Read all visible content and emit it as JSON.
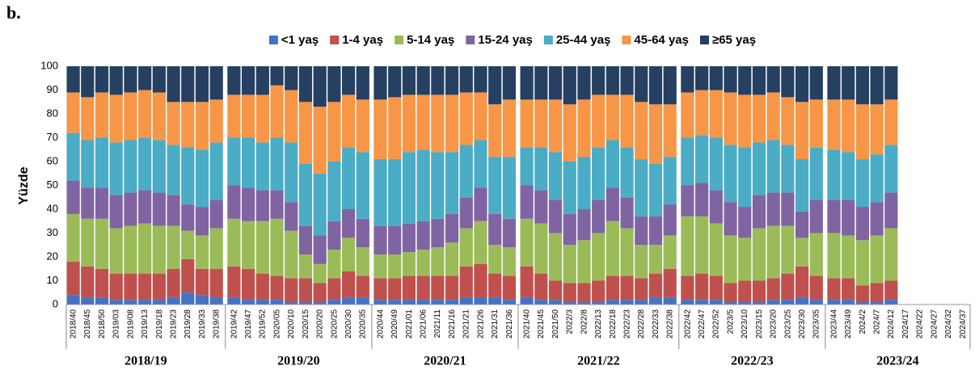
{
  "panel_label": "b.",
  "chart_data": {
    "type": "stacked_bar",
    "ylabel": "Yüzde",
    "ylim": [
      0,
      100
    ],
    "yticks": [
      0,
      10,
      20,
      30,
      40,
      50,
      60,
      70,
      80,
      90,
      100
    ],
    "categories": [
      "2018/40",
      "2018/45",
      "2018/50",
      "2019/03",
      "2019/08",
      "2019/13",
      "2019/18",
      "2019/23",
      "2019/28",
      "2019/33",
      "2019/38",
      "2019/42",
      "2019/47",
      "2019/52",
      "2020/05",
      "2020/10",
      "2020/15",
      "2020/20",
      "2020/25",
      "2020/30",
      "2020/35",
      "2020/44",
      "2020/49",
      "2021/01",
      "2021/06",
      "2021/11",
      "2021/16",
      "2021/21",
      "2021/26",
      "2021/31",
      "2021/36",
      "2021/40",
      "2021/45",
      "2021/50",
      "2022/3",
      "2022/8",
      "2022/13",
      "2022/18",
      "2022/23",
      "2022/28",
      "2022/33",
      "2022/38",
      "2022/42",
      "2022/47",
      "2022/52",
      "2023/5",
      "2023/10",
      "2023/15",
      "2023/20",
      "2023/25",
      "2023/30",
      "2023/35",
      "2023/44",
      "2023/49",
      "2024/2",
      "2024/7",
      "2024/12",
      "2024/17",
      "2024/22",
      "2024/27",
      "2024/32",
      "2024/37"
    ],
    "groups": [
      "2018/19",
      "2019/20",
      "2020/21",
      "2021/22",
      "2022/23",
      "2023/24"
    ],
    "series": [
      {
        "name": "<1 yaş",
        "color": "#4472c4",
        "values": [
          4,
          3,
          3,
          2,
          2,
          2,
          2,
          3,
          5,
          4,
          3,
          3,
          2,
          2,
          2,
          1,
          1,
          1,
          2,
          3,
          3,
          2,
          2,
          2,
          2,
          2,
          2,
          3,
          3,
          3,
          2,
          3,
          2,
          2,
          1,
          1,
          1,
          2,
          2,
          2,
          3,
          3,
          2,
          2,
          2,
          1,
          1,
          1,
          2,
          2,
          3,
          2,
          2,
          2,
          1,
          1,
          2,
          null,
          null,
          null,
          null,
          null
        ]
      },
      {
        "name": "1-4 yaş",
        "color": "#c0504d",
        "values": [
          14,
          13,
          12,
          11,
          11,
          11,
          11,
          12,
          14,
          11,
          12,
          13,
          13,
          11,
          10,
          10,
          10,
          8,
          9,
          11,
          9,
          9,
          9,
          10,
          10,
          10,
          10,
          13,
          14,
          10,
          10,
          13,
          11,
          8,
          8,
          8,
          9,
          10,
          10,
          9,
          10,
          12,
          10,
          11,
          10,
          8,
          9,
          9,
          9,
          11,
          13,
          10,
          9,
          9,
          7,
          8,
          8,
          null,
          null,
          null,
          null,
          null
        ]
      },
      {
        "name": "5-14 yaş",
        "color": "#9bbb59",
        "values": [
          20,
          20,
          21,
          19,
          20,
          21,
          20,
          18,
          12,
          14,
          17,
          20,
          20,
          22,
          24,
          20,
          10,
          8,
          12,
          14,
          12,
          10,
          10,
          10,
          11,
          12,
          14,
          16,
          18,
          12,
          12,
          20,
          21,
          20,
          16,
          18,
          20,
          23,
          20,
          14,
          12,
          14,
          25,
          24,
          22,
          20,
          18,
          22,
          22,
          20,
          12,
          18,
          19,
          18,
          19,
          20,
          22,
          null,
          null,
          null,
          null,
          null
        ]
      },
      {
        "name": "15-24 yaş",
        "color": "#8064a2",
        "values": [
          14,
          13,
          13,
          14,
          14,
          14,
          14,
          13,
          11,
          12,
          12,
          14,
          14,
          13,
          12,
          12,
          12,
          12,
          12,
          12,
          12,
          12,
          12,
          12,
          12,
          12,
          12,
          13,
          14,
          13,
          12,
          14,
          14,
          14,
          13,
          13,
          14,
          14,
          13,
          12,
          12,
          13,
          13,
          14,
          14,
          14,
          13,
          14,
          14,
          14,
          11,
          14,
          14,
          15,
          14,
          14,
          15,
          null,
          null,
          null,
          null,
          null
        ]
      },
      {
        "name": "25-44 yaş",
        "color": "#4bacc6",
        "values": [
          20,
          20,
          21,
          22,
          22,
          22,
          22,
          21,
          24,
          24,
          24,
          20,
          21,
          20,
          22,
          25,
          26,
          26,
          25,
          26,
          28,
          28,
          28,
          30,
          30,
          28,
          26,
          22,
          20,
          24,
          26,
          16,
          18,
          20,
          22,
          22,
          22,
          20,
          21,
          24,
          22,
          20,
          20,
          20,
          22,
          24,
          25,
          22,
          22,
          20,
          22,
          22,
          21,
          20,
          20,
          20,
          20,
          null,
          null,
          null,
          null,
          null
        ]
      },
      {
        "name": "45-64 yaş",
        "color": "#f79646",
        "values": [
          17,
          18,
          19,
          20,
          20,
          20,
          20,
          18,
          19,
          20,
          18,
          18,
          18,
          20,
          22,
          22,
          26,
          28,
          25,
          22,
          22,
          25,
          26,
          24,
          23,
          24,
          24,
          22,
          20,
          22,
          24,
          20,
          20,
          22,
          24,
          24,
          22,
          19,
          22,
          24,
          25,
          22,
          19,
          19,
          20,
          22,
          22,
          20,
          20,
          20,
          24,
          20,
          21,
          22,
          23,
          21,
          19,
          null,
          null,
          null,
          null,
          null
        ]
      },
      {
        "name": "≥65 yaş",
        "color": "#254061",
        "values": [
          11,
          13,
          11,
          12,
          11,
          10,
          11,
          15,
          15,
          15,
          14,
          12,
          12,
          12,
          8,
          10,
          15,
          17,
          15,
          12,
          14,
          14,
          13,
          12,
          12,
          12,
          12,
          11,
          11,
          16,
          14,
          14,
          14,
          14,
          16,
          14,
          12,
          12,
          12,
          15,
          16,
          16,
          11,
          10,
          10,
          11,
          12,
          12,
          11,
          13,
          15,
          14,
          14,
          14,
          16,
          16,
          14,
          null,
          null,
          null,
          null,
          null
        ]
      }
    ]
  }
}
